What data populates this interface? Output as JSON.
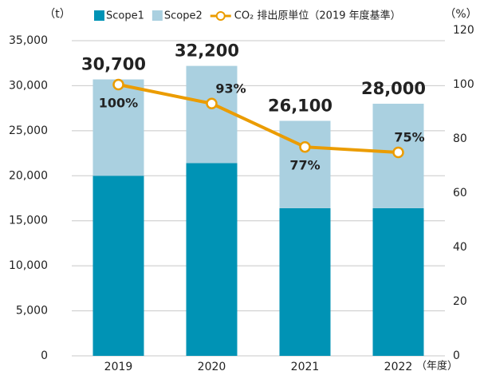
{
  "chart_data": {
    "type": "bar",
    "categories": [
      "2019",
      "2020",
      "2021",
      "2022"
    ],
    "series": [
      {
        "name": "Scope1",
        "color": "#0093b5",
        "values": [
          20000,
          21400,
          16400,
          16400
        ]
      },
      {
        "name": "Scope2",
        "color": "#aad0e0",
        "values": [
          10700,
          10800,
          9700,
          11600
        ]
      },
      {
        "name": "CO₂ 排出原単位（2019 年度基準）",
        "type": "line",
        "axis": "y2",
        "color": "#eb9c00",
        "values": [
          100,
          93,
          77,
          75
        ],
        "value_labels": [
          "100%",
          "93%",
          "77%",
          "75%"
        ]
      }
    ],
    "total_labels": [
      "30,700",
      "32,200",
      "26,100",
      "28,000"
    ],
    "y_unit": "（t）",
    "y2_unit": "（%）",
    "x_unit": "（年度）",
    "ylim": [
      0,
      35000
    ],
    "yticks": [
      0,
      {
        "value": 5000,
        "label": "5,000"
      },
      {
        "value": 10000,
        "label": "10,000"
      },
      {
        "value": 15000,
        "label": "15,000"
      },
      {
        "value": 20000,
        "label": "20,000"
      },
      {
        "value": 25000,
        "label": "25,000"
      },
      {
        "value": 30000,
        "label": "30,000"
      },
      {
        "value": 35000,
        "label": "35,000"
      }
    ],
    "y2lim": [
      0,
      120
    ],
    "y2ticks": [
      0,
      20,
      40,
      60,
      80,
      100,
      120
    ],
    "grid": true
  }
}
